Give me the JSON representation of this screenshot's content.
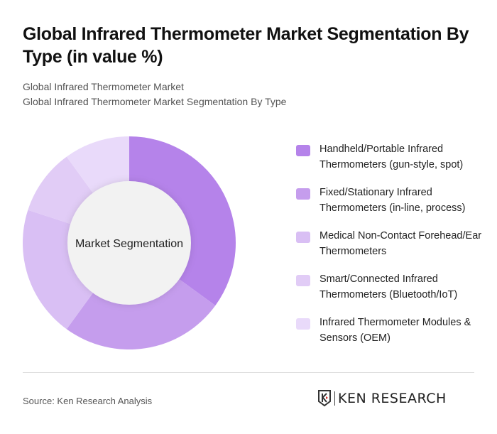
{
  "header": {
    "title": "Global Infrared Thermometer Market Segmentation By Type (in value %)",
    "subtitle_line1": "Global Infrared Thermometer Market",
    "subtitle_line2": "Global Infrared Thermometer Market Segmentation By Type"
  },
  "chart": {
    "center_label": "Market Segmentation"
  },
  "legend": [
    {
      "label": "Handheld/Portable Infrared Thermometers (gun-style, spot)",
      "color": "#b583ea"
    },
    {
      "label": "Fixed/Stationary Infrared Thermometers (in-line, process)",
      "color": "#c59ded"
    },
    {
      "label": "Medical Non-Contact Forehead/Ear Thermometers",
      "color": "#d9bff4"
    },
    {
      "label": "Smart/Connected Infrared Thermometers (Bluetooth/IoT)",
      "color": "#e1ccf6"
    },
    {
      "label": "Infrared Thermometer Modules & Sensors (OEM)",
      "color": "#e9dafa"
    }
  ],
  "footer": {
    "source": "Source: Ken Research Analysis",
    "logo_text": "KEN RESEARCH"
  },
  "chart_data": {
    "type": "pie",
    "variant": "donut",
    "title": "Global Infrared Thermometer Market Segmentation By Type (in value %)",
    "center_label": "Market Segmentation",
    "categories": [
      "Handheld/Portable Infrared Thermometers (gun-style, spot)",
      "Fixed/Stationary Infrared Thermometers (in-line, process)",
      "Medical Non-Contact Forehead/Ear Thermometers",
      "Smart/Connected Infrared Thermometers (Bluetooth/IoT)",
      "Infrared Thermometer Modules & Sensors (OEM)"
    ],
    "values": [
      35,
      25,
      20,
      10,
      10
    ],
    "colors": [
      "#b583ea",
      "#c59ded",
      "#d9bff4",
      "#e1ccf6",
      "#e9dafa"
    ],
    "legend_position": "right",
    "start_angle": "top, clockwise"
  }
}
